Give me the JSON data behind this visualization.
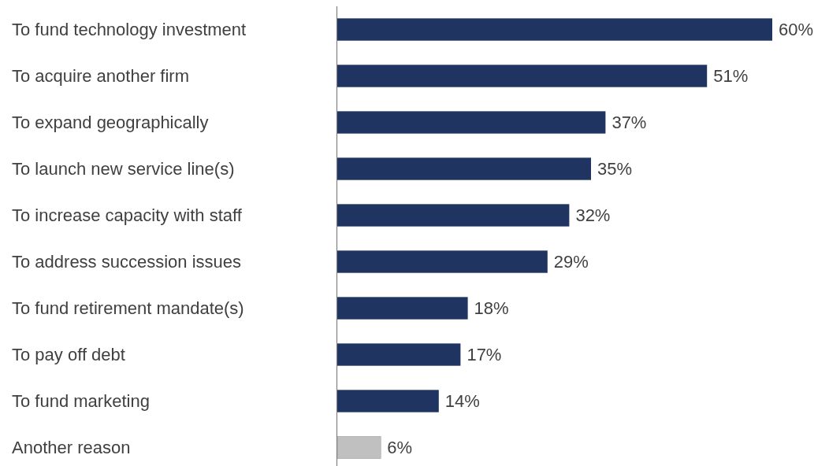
{
  "chart_data": {
    "type": "bar",
    "orientation": "horizontal",
    "categories": [
      "To fund technology investment",
      "To acquire another firm",
      "To expand geographically",
      "To launch new service line(s)",
      "To increase capacity with staff",
      "To address succession issues",
      "To fund retirement mandate(s)",
      "To pay off debt",
      "To fund marketing",
      "Another reason"
    ],
    "values": [
      60,
      51,
      37,
      35,
      32,
      29,
      18,
      17,
      14,
      6
    ],
    "value_labels": [
      "60%",
      "51%",
      "37%",
      "35%",
      "32%",
      "29%",
      "18%",
      "17%",
      "14%",
      "6%"
    ],
    "colors": [
      "#1f3461",
      "#1f3461",
      "#1f3461",
      "#1f3461",
      "#1f3461",
      "#1f3461",
      "#1f3461",
      "#1f3461",
      "#1f3461",
      "#c0c0c0"
    ]
  }
}
